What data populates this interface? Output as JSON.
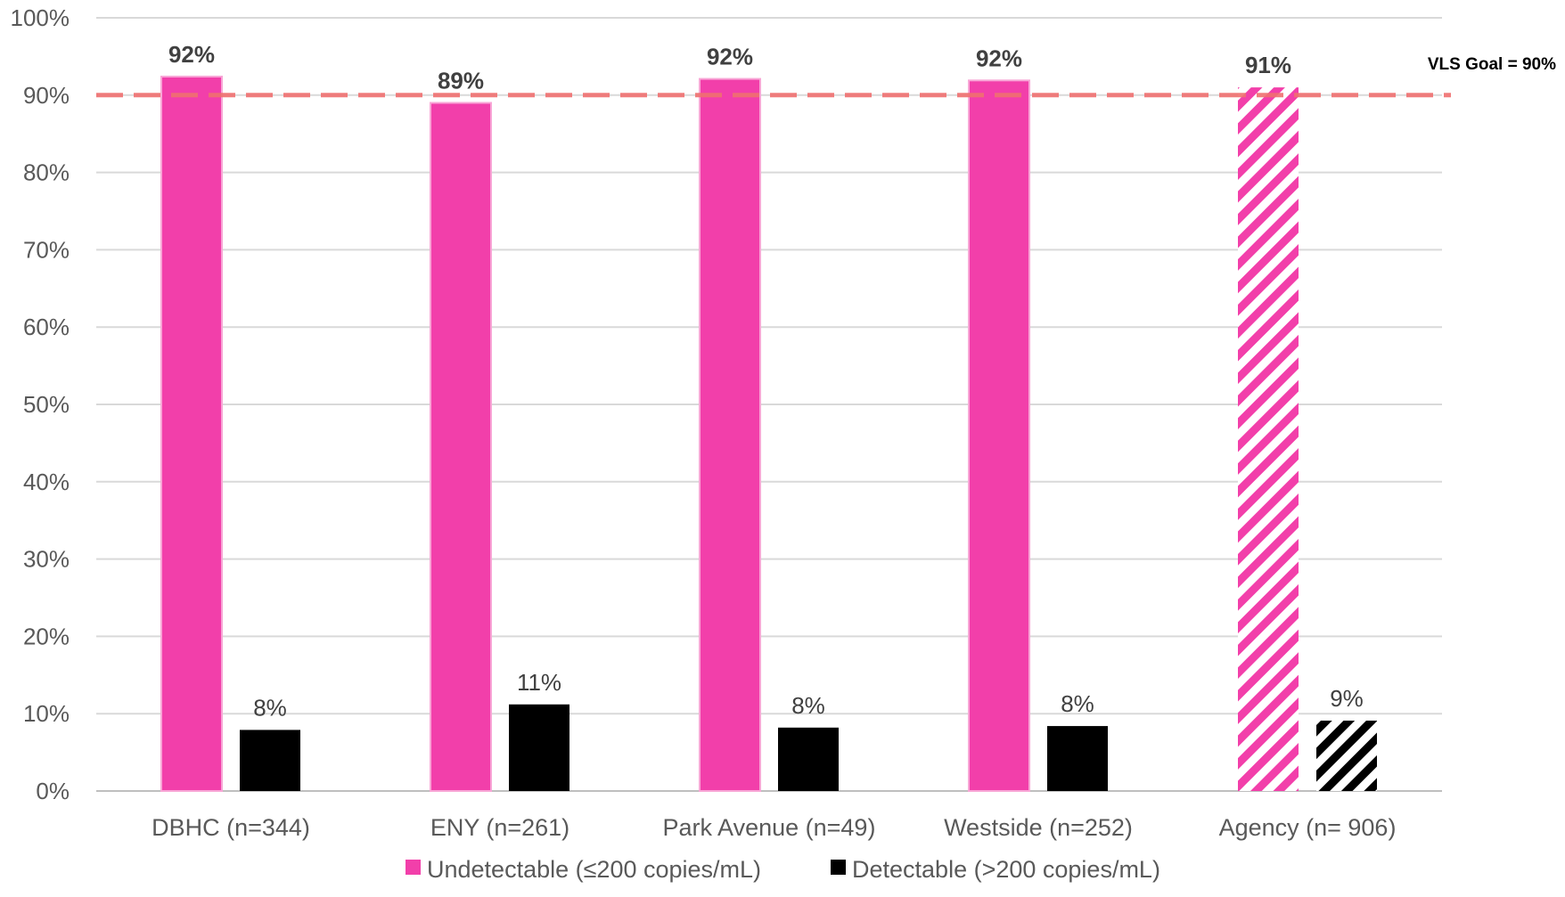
{
  "chart_data": {
    "type": "bar",
    "categories": [
      "DBHC (n=344)",
      "ENY (n=261)",
      "Park Avenue (n=49)",
      "Westside (n=252)",
      "Agency (n= 906)"
    ],
    "series": [
      {
        "name": "Undetectable (≤200 copies/mL)",
        "values": [
          92.4,
          89.0,
          92.1,
          91.9,
          91.0
        ],
        "labels": [
          "92%",
          "89%",
          "92%",
          "92%",
          "91%"
        ],
        "color": "#F23FAA"
      },
      {
        "name": "Detectable (>200 copies/mL)",
        "values": [
          7.9,
          11.2,
          8.2,
          8.4,
          9.1
        ],
        "labels": [
          "8%",
          "11%",
          "8%",
          "8%",
          "9%"
        ],
        "color": "#000000"
      }
    ],
    "hatched_category": "Agency (n= 906)",
    "ylim": [
      0,
      100
    ],
    "yticks": [
      "0%",
      "10%",
      "20%",
      "30%",
      "40%",
      "50%",
      "60%",
      "70%",
      "80%",
      "90%",
      "100%"
    ],
    "grid": true,
    "legend_position": "bottom",
    "reference_line": {
      "value": 90,
      "label": "VLS Goal = 90%",
      "color": "#F07070"
    }
  }
}
